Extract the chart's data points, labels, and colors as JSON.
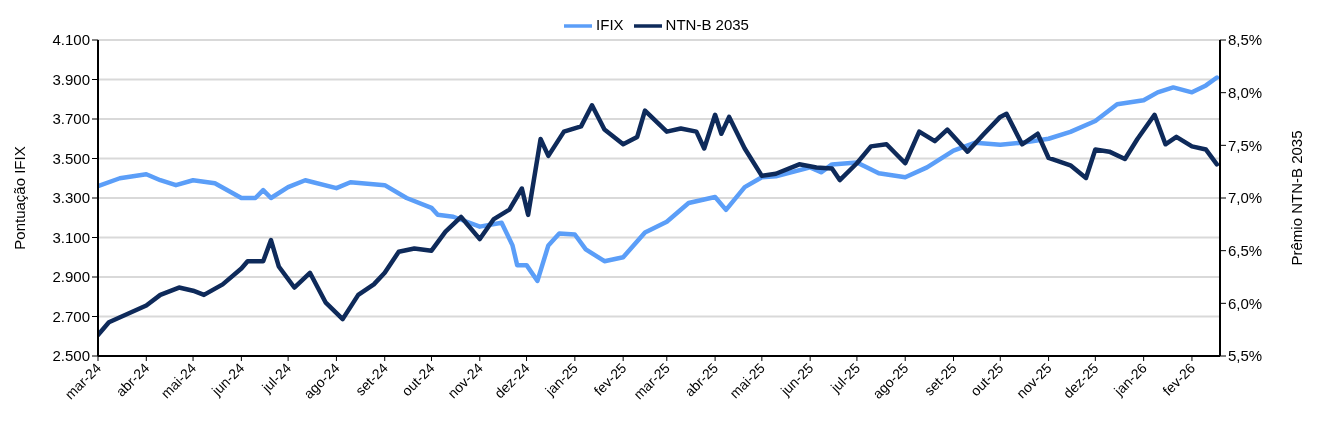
{
  "chart_data": {
    "type": "line",
    "ylabel": "Pontuação IFIX",
    "y2label": "Prêmio NTN-B 2035",
    "legend": "top",
    "grid": "y",
    "marker": "none",
    "line_style": "solid",
    "xlim": [
      "2024-03-01",
      "2026-02-19"
    ],
    "xticks": [
      {
        "value": "2024-03-01",
        "label": "mar-24"
      },
      {
        "value": "2024-04-01",
        "label": "abr-24"
      },
      {
        "value": "2024-05-01",
        "label": "mai-24"
      },
      {
        "value": "2024-06-01",
        "label": "jun-24"
      },
      {
        "value": "2024-07-01",
        "label": "jul-24"
      },
      {
        "value": "2024-08-01",
        "label": "ago-24"
      },
      {
        "value": "2024-09-01",
        "label": "set-24"
      },
      {
        "value": "2024-10-01",
        "label": "out-24"
      },
      {
        "value": "2024-11-01",
        "label": "nov-24"
      },
      {
        "value": "2024-12-01",
        "label": "dez-24"
      },
      {
        "value": "2025-01-01",
        "label": "jan-25"
      },
      {
        "value": "2025-02-01",
        "label": "fev-25"
      },
      {
        "value": "2025-03-01",
        "label": "mar-25"
      },
      {
        "value": "2025-04-01",
        "label": "abr-25"
      },
      {
        "value": "2025-05-01",
        "label": "mai-25"
      },
      {
        "value": "2025-06-01",
        "label": "jun-25"
      },
      {
        "value": "2025-07-01",
        "label": "jul-25"
      },
      {
        "value": "2025-08-01",
        "label": "ago-25"
      },
      {
        "value": "2025-09-01",
        "label": "set-25"
      },
      {
        "value": "2025-10-01",
        "label": "out-25"
      },
      {
        "value": "2025-11-01",
        "label": "nov-25"
      },
      {
        "value": "2025-12-01",
        "label": "dez-25"
      },
      {
        "value": "2026-01-01",
        "label": "jan-26"
      },
      {
        "value": "2026-02-01",
        "label": "fev-26"
      }
    ],
    "ylim": [
      2500,
      4100
    ],
    "yticks": [
      {
        "value": 2500,
        "label": "2.500"
      },
      {
        "value": 2700,
        "label": "2.700"
      },
      {
        "value": 2900,
        "label": "2.900"
      },
      {
        "value": 3100,
        "label": "3.100"
      },
      {
        "value": 3300,
        "label": "3.300"
      },
      {
        "value": 3500,
        "label": "3.500"
      },
      {
        "value": 3700,
        "label": "3.700"
      },
      {
        "value": 3900,
        "label": "3.900"
      },
      {
        "value": 4100,
        "label": "4.100"
      }
    ],
    "y2lim": [
      5.5,
      8.5
    ],
    "y2ticks": [
      {
        "value": 5.5,
        "label": "5,5%"
      },
      {
        "value": 6.0,
        "label": "6,0%"
      },
      {
        "value": 6.5,
        "label": "6,5%"
      },
      {
        "value": 7.0,
        "label": "7,0%"
      },
      {
        "value": 7.5,
        "label": "7,5%"
      },
      {
        "value": 8.0,
        "label": "8,0%"
      },
      {
        "value": 8.5,
        "label": "8,5%"
      }
    ],
    "series": [
      {
        "name": "IFIX",
        "color": "#5b9ef8",
        "x": [
          "2024-03-01",
          "2024-03-15",
          "2024-04-01",
          "2024-04-10",
          "2024-04-20",
          "2024-05-01",
          "2024-05-15",
          "2024-06-01",
          "2024-06-10",
          "2024-06-15",
          "2024-06-20",
          "2024-07-01",
          "2024-07-12",
          "2024-08-01",
          "2024-08-10",
          "2024-09-01",
          "2024-09-15",
          "2024-10-01",
          "2024-10-05",
          "2024-10-15",
          "2024-11-01",
          "2024-11-15",
          "2024-11-22",
          "2024-11-25",
          "2024-12-01",
          "2024-12-08",
          "2024-12-15",
          "2024-12-22",
          "2025-01-01",
          "2025-01-08",
          "2025-01-20",
          "2025-02-01",
          "2025-02-15",
          "2025-03-01",
          "2025-03-15",
          "2025-04-01",
          "2025-04-08",
          "2025-04-20",
          "2025-05-01",
          "2025-05-10",
          "2025-06-01",
          "2025-06-08",
          "2025-06-15",
          "2025-07-01",
          "2025-07-15",
          "2025-08-01",
          "2025-08-15",
          "2025-09-01",
          "2025-09-15",
          "2025-10-01",
          "2025-10-15",
          "2025-11-01",
          "2025-11-15",
          "2025-12-01",
          "2025-12-15",
          "2026-01-01",
          "2026-01-10",
          "2026-01-20",
          "2026-02-01",
          "2026-02-10",
          "2026-02-17"
        ],
        "values": [
          3360,
          3400,
          3420,
          3390,
          3365,
          3390,
          3375,
          3300,
          3300,
          3340,
          3300,
          3355,
          3390,
          3350,
          3380,
          3365,
          3300,
          3250,
          3215,
          3205,
          3155,
          3175,
          3060,
          2960,
          2960,
          2880,
          3060,
          3120,
          3115,
          3040,
          2980,
          3000,
          3125,
          3180,
          3275,
          3305,
          3240,
          3355,
          3405,
          3410,
          3455,
          3430,
          3470,
          3480,
          3425,
          3405,
          3455,
          3540,
          3580,
          3570,
          3580,
          3600,
          3635,
          3690,
          3775,
          3795,
          3835,
          3860,
          3835,
          3870,
          3910
        ]
      },
      {
        "name": "NTN-B 2035",
        "color": "#0e2a5a",
        "axis": "y2",
        "x": [
          "2024-03-01",
          "2024-03-08",
          "2024-04-01",
          "2024-04-10",
          "2024-04-22",
          "2024-05-01",
          "2024-05-08",
          "2024-05-20",
          "2024-06-01",
          "2024-06-05",
          "2024-06-15",
          "2024-06-20",
          "2024-06-25",
          "2024-07-05",
          "2024-07-15",
          "2024-07-25",
          "2024-08-05",
          "2024-08-15",
          "2024-08-25",
          "2024-09-01",
          "2024-09-10",
          "2024-09-20",
          "2024-10-01",
          "2024-10-10",
          "2024-10-20",
          "2024-11-01",
          "2024-11-10",
          "2024-11-20",
          "2024-11-28",
          "2024-12-02",
          "2024-12-10",
          "2024-12-15",
          "2024-12-25",
          "2025-01-05",
          "2025-01-12",
          "2025-01-20",
          "2025-02-01",
          "2025-02-10",
          "2025-02-15",
          "2025-03-01",
          "2025-03-10",
          "2025-03-20",
          "2025-03-25",
          "2025-04-01",
          "2025-04-05",
          "2025-04-10",
          "2025-04-20",
          "2025-05-01",
          "2025-05-10",
          "2025-05-25",
          "2025-06-05",
          "2025-06-15",
          "2025-06-20",
          "2025-07-01",
          "2025-07-10",
          "2025-07-20",
          "2025-08-01",
          "2025-08-10",
          "2025-08-20",
          "2025-08-28",
          "2025-09-10",
          "2025-09-20",
          "2025-10-01",
          "2025-10-05",
          "2025-10-15",
          "2025-10-25",
          "2025-11-01",
          "2025-11-15",
          "2025-11-25",
          "2025-12-01",
          "2025-12-10",
          "2025-12-20",
          "2025-12-28",
          "2026-01-08",
          "2026-01-15",
          "2026-01-22",
          "2026-02-01",
          "2026-02-10",
          "2026-02-17"
        ],
        "values": [
          5.7,
          5.82,
          5.98,
          6.08,
          6.15,
          6.12,
          6.08,
          6.18,
          6.33,
          6.4,
          6.4,
          6.6,
          6.35,
          6.15,
          6.29,
          6.01,
          5.85,
          6.08,
          6.18,
          6.29,
          6.49,
          6.52,
          6.5,
          6.68,
          6.82,
          6.61,
          6.8,
          6.89,
          7.09,
          6.84,
          7.56,
          7.4,
          7.63,
          7.68,
          7.88,
          7.65,
          7.51,
          7.58,
          7.83,
          7.63,
          7.66,
          7.63,
          7.47,
          7.79,
          7.61,
          7.77,
          7.47,
          7.21,
          7.23,
          7.32,
          7.29,
          7.28,
          7.17,
          7.33,
          7.49,
          7.51,
          7.33,
          7.63,
          7.54,
          7.65,
          7.44,
          7.6,
          7.77,
          7.8,
          7.51,
          7.61,
          7.38,
          7.31,
          7.19,
          7.46,
          7.44,
          7.37,
          7.56,
          7.79,
          7.51,
          7.58,
          7.49,
          7.46,
          7.32
        ]
      }
    ]
  }
}
